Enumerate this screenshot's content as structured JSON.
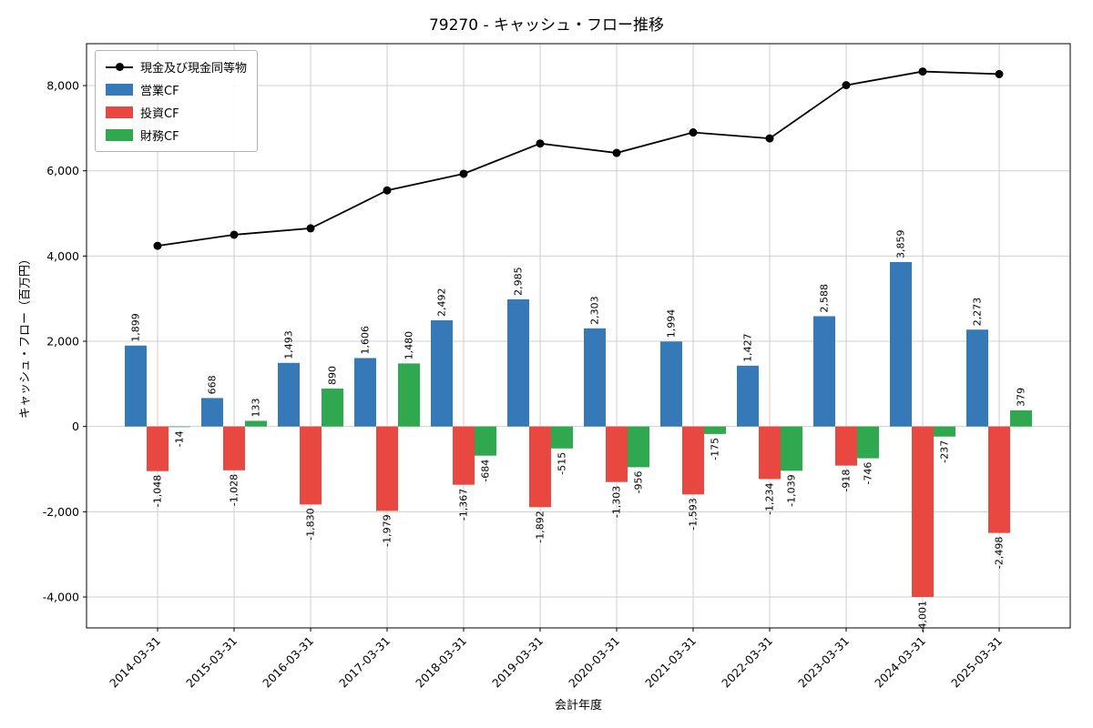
{
  "chart_data": {
    "type": "bar",
    "subtype": "grouped-bars-with-line",
    "title": "79270 - キャッシュ・フロー推移",
    "xlabel": "会計年度",
    "ylabel": "キャッシュ・フロー（百万円）",
    "ylim": [
      -4726,
      8983
    ],
    "yticks": [
      -4000,
      -2000,
      0,
      2000,
      4000,
      6000,
      8000
    ],
    "grid": true,
    "legend_position": "upper-left",
    "categories": [
      "2014-03-31",
      "2015-03-31",
      "2016-03-31",
      "2017-03-31",
      "2018-03-31",
      "2019-03-31",
      "2020-03-31",
      "2021-03-31",
      "2022-03-31",
      "2023-03-31",
      "2024-03-31",
      "2025-03-31"
    ],
    "series": [
      {
        "key": "operating-cf",
        "name": "営業CF",
        "color": "#3579b8",
        "values": [
          1899,
          668,
          1493,
          1606,
          2492,
          2985,
          2303,
          1994,
          1427,
          2588,
          3859,
          2273
        ]
      },
      {
        "key": "investing-cf",
        "name": "投資CF",
        "color": "#e8483f",
        "values": [
          -1048,
          -1028,
          -1830,
          -1979,
          -1367,
          -1892,
          -1303,
          -1593,
          -1234,
          -918,
          -4001,
          -2498
        ]
      },
      {
        "key": "financing-cf",
        "name": "財務CF",
        "color": "#2fa84f",
        "values": [
          -14,
          133,
          890,
          1480,
          -684,
          -515,
          -956,
          -175,
          -1039,
          -746,
          -237,
          379
        ]
      }
    ],
    "line_series": {
      "key": "cash-and-equivalents",
      "name": "現金及び現金同等物",
      "color": "#000000",
      "values": [
        4240,
        4500,
        4650,
        5540,
        5930,
        6640,
        6420,
        6900,
        6760,
        8010,
        8330,
        8270
      ]
    }
  }
}
